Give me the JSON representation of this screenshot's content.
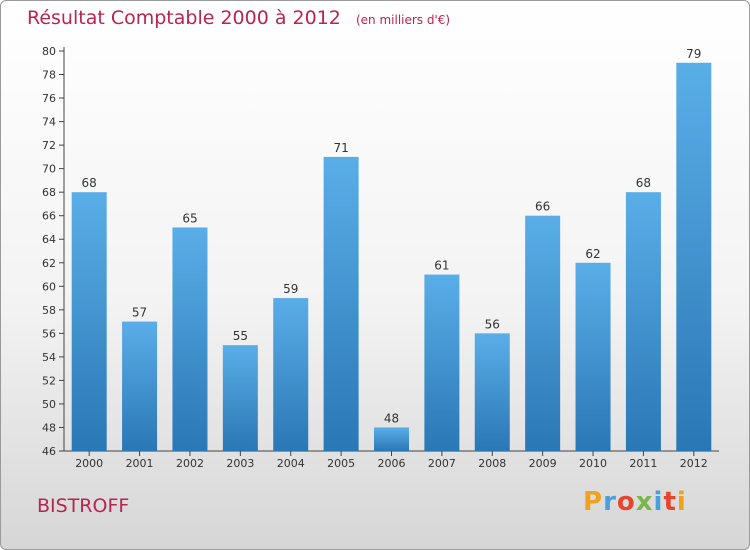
{
  "header": {
    "title": "Résultat Comptable 2000 à 2012",
    "unit_note": "(en milliers d'€)"
  },
  "footer": {
    "commune": "BISTROFF",
    "logo_text": "Proxiti"
  },
  "colors": {
    "title": "#b8254f",
    "bar_top": "#5aaee8",
    "bar_bottom": "#2a77b5",
    "logo_letters": [
      "#f0a21c",
      "#4aa0d8",
      "#e7452b",
      "#7ab648",
      "#4aa0d8",
      "#e7452b",
      "#f0a21c"
    ]
  },
  "chart_data": {
    "type": "bar",
    "title": "Résultat Comptable 2000 à 2012",
    "subtitle": "(en milliers d'€)",
    "xlabel": "",
    "ylabel": "",
    "ylim": [
      46,
      80
    ],
    "yticks": [
      46,
      48,
      50,
      52,
      54,
      56,
      58,
      60,
      62,
      64,
      66,
      68,
      70,
      72,
      74,
      76,
      78,
      80
    ],
    "grid": false,
    "categories": [
      "2000",
      "2001",
      "2002",
      "2003",
      "2004",
      "2005",
      "2006",
      "2007",
      "2008",
      "2009",
      "2010",
      "2011",
      "2012"
    ],
    "values": [
      68,
      57,
      65,
      55,
      59,
      71,
      48,
      61,
      56,
      66,
      62,
      68,
      79
    ]
  }
}
